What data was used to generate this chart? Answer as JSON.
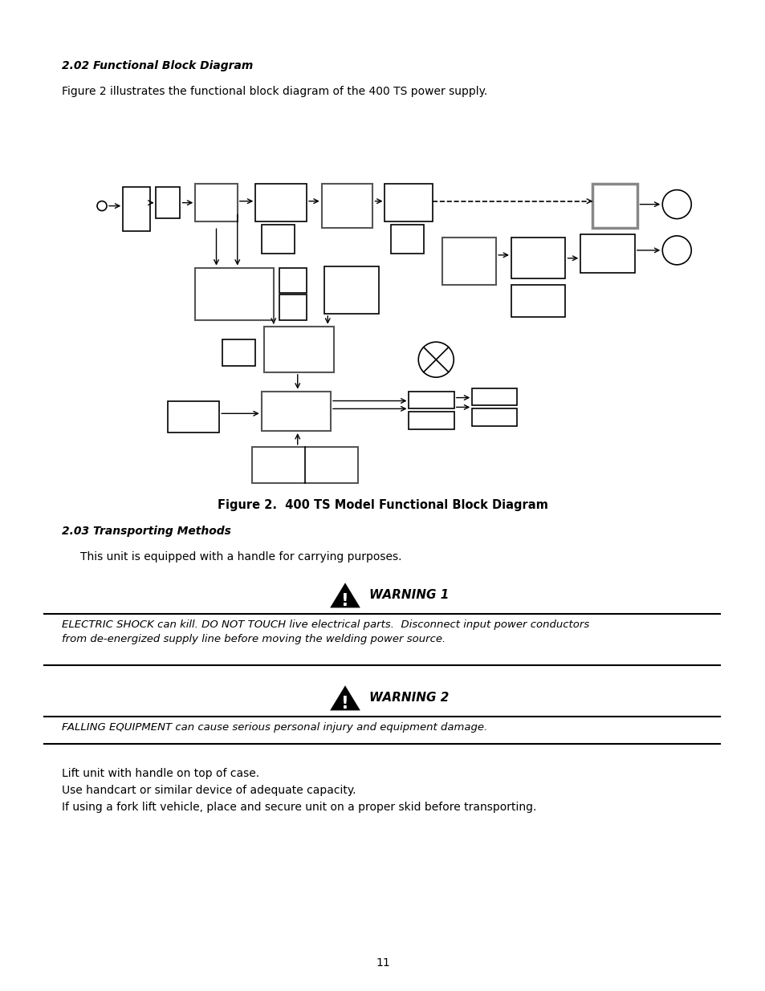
{
  "title_section1": "2.02 Functional Block Diagram",
  "body_text1": "Figure 2 illustrates the functional block diagram of the 400 TS power supply.",
  "figure_caption": "Figure 2.  400 TS Model Functional Block Diagram",
  "title_section2": "2.03 Transporting Methods",
  "body_text2": "This unit is equipped with a handle for carrying purposes.",
  "warning1_title": "WARNING 1",
  "warning1_text": "ELECTRIC SHOCK can kill. DO NOT TOUCH live electrical parts.  Disconnect input power conductors\nfrom de-energized supply line before moving the welding power source.",
  "warning2_title": "WARNING 2",
  "warning2_text": "FALLING EQUIPMENT can cause serious personal injury and equipment damage.",
  "footer_lines": [
    "Lift unit with handle on top of case.",
    "Use handcart or similar device of adequate capacity.",
    "If using a fork lift vehicle, place and secure unit on a proper skid before transporting."
  ],
  "page_number": "11",
  "bg_color": "#ffffff",
  "text_color": "#000000"
}
